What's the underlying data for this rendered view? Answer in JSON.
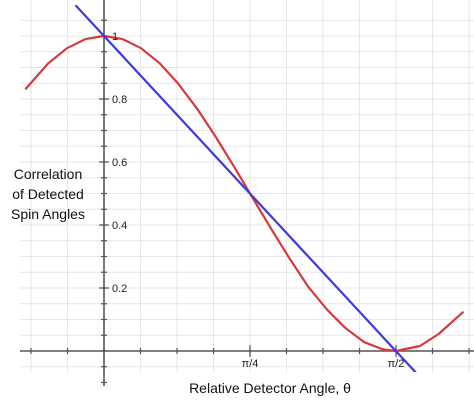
{
  "chart_data": {
    "type": "line",
    "title": "",
    "xlabel": "Relative Detector Angle, θ",
    "ylabel_lines": [
      "Correlation",
      "of Detected",
      "Spin Angles"
    ],
    "xlim": [
      -0.28,
      1.93
    ],
    "ylim": [
      -0.13,
      1.07
    ],
    "x_ticks": [
      {
        "value": 0.7854,
        "label": "π/4"
      },
      {
        "value": 1.5708,
        "label": "π/2"
      }
    ],
    "y_ticks": [
      {
        "value": 0.2,
        "label": "0.2"
      },
      {
        "value": 0.4,
        "label": "0.4"
      },
      {
        "value": 0.6,
        "label": "0.6"
      },
      {
        "value": 0.8,
        "label": "0.8"
      },
      {
        "value": 1.0,
        "label": "1"
      }
    ],
    "grid": true,
    "legend": "none",
    "series": [
      {
        "color": "#d63a3a",
        "x": [
          -0.42,
          -0.3,
          -0.2,
          -0.1,
          0,
          0.1,
          0.2,
          0.3,
          0.4,
          0.5,
          0.6,
          0.7,
          0.7854,
          0.9,
          1.0,
          1.1,
          1.2,
          1.3,
          1.4,
          1.5,
          1.5708,
          1.7,
          1.8,
          1.93
        ],
        "y": [
          0.833,
          0.913,
          0.961,
          0.99,
          1.0,
          0.99,
          0.961,
          0.913,
          0.848,
          0.77,
          0.681,
          0.585,
          0.5,
          0.387,
          0.292,
          0.203,
          0.131,
          0.072,
          0.028,
          0.005,
          0.0,
          0.016,
          0.054,
          0.123
        ]
      },
      {
        "color": "#3a3ae0",
        "x": [
          -0.15,
          1.71
        ],
        "y": [
          1.0955,
          -0.0891
        ]
      }
    ]
  }
}
